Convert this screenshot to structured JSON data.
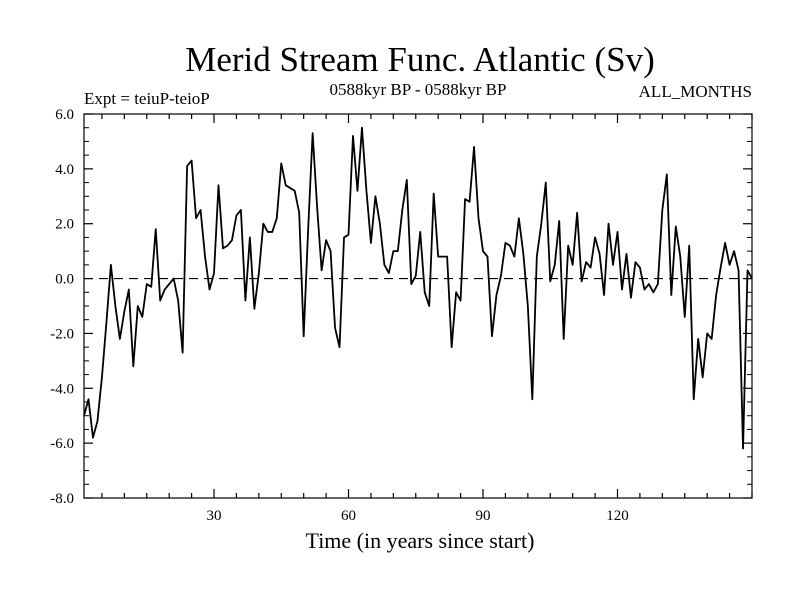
{
  "chart_data": {
    "type": "line",
    "title": "Merid Stream Func. Atlantic (Sv)",
    "subtitle_left": "Expt = teiuP-teioP",
    "subtitle_center": "0588kyr BP - 0588kyr BP",
    "subtitle_right": "ALL_MONTHS",
    "xlabel": "Time (in years since start)",
    "ylabel": "",
    "xlim": [
      1,
      150
    ],
    "ylim": [
      -8.0,
      6.0
    ],
    "xticks": [
      30,
      60,
      90,
      120
    ],
    "yticks": [
      6.0,
      4.0,
      2.0,
      0.0,
      -2.0,
      -4.0,
      -6.0,
      -8.0
    ],
    "ytick_labels": [
      "6.0",
      "4.0",
      "2.0",
      "0.0",
      "-2.0",
      "-4.0",
      "-6.0",
      "-8.0"
    ],
    "reference_line": 0.0,
    "series": [
      {
        "name": "Merid Stream Func. Atlantic",
        "x": [
          1,
          2,
          3,
          4,
          5,
          6,
          7,
          8,
          9,
          10,
          11,
          12,
          13,
          14,
          15,
          16,
          17,
          18,
          19,
          20,
          21,
          22,
          23,
          24,
          25,
          26,
          27,
          28,
          29,
          30,
          31,
          32,
          33,
          34,
          35,
          36,
          37,
          38,
          39,
          40,
          41,
          42,
          43,
          44,
          45,
          46,
          47,
          48,
          49,
          50,
          51,
          52,
          53,
          54,
          55,
          56,
          57,
          58,
          59,
          60,
          61,
          62,
          63,
          64,
          65,
          66,
          67,
          68,
          69,
          70,
          71,
          72,
          73,
          74,
          75,
          76,
          77,
          78,
          79,
          80,
          81,
          82,
          83,
          84,
          85,
          86,
          87,
          88,
          89,
          90,
          91,
          92,
          93,
          94,
          95,
          96,
          97,
          98,
          99,
          100,
          101,
          102,
          103,
          104,
          105,
          106,
          107,
          108,
          109,
          110,
          111,
          112,
          113,
          114,
          115,
          116,
          117,
          118,
          119,
          120,
          121,
          122,
          123,
          124,
          125,
          126,
          127,
          128,
          129,
          130,
          131,
          132,
          133,
          134,
          135,
          136,
          137,
          138,
          139,
          140,
          141,
          142,
          143,
          144,
          145,
          146,
          147,
          148,
          149,
          150
        ],
        "values": [
          -5.0,
          -4.4,
          -5.8,
          -5.2,
          -3.6,
          -1.6,
          0.5,
          -1.0,
          -2.2,
          -1.2,
          -0.4,
          -3.2,
          -1.0,
          -1.4,
          -0.2,
          -0.3,
          1.8,
          -0.8,
          -0.4,
          -0.2,
          0.0,
          -0.8,
          -2.7,
          4.1,
          4.3,
          2.2,
          2.5,
          0.8,
          -0.4,
          0.2,
          3.4,
          1.1,
          1.2,
          1.4,
          2.3,
          2.5,
          -0.8,
          1.5,
          -1.1,
          0.2,
          2.0,
          1.7,
          1.7,
          2.2,
          4.2,
          3.4,
          3.3,
          3.2,
          2.4,
          -2.1,
          1.8,
          5.3,
          2.6,
          0.3,
          1.4,
          1.0,
          -1.8,
          -2.5,
          1.5,
          1.6,
          5.2,
          3.2,
          5.5,
          3.2,
          1.3,
          3.0,
          2.0,
          0.5,
          0.2,
          1.0,
          1.0,
          2.5,
          3.6,
          -0.2,
          0.1,
          1.7,
          -0.5,
          -1.0,
          3.1,
          0.8,
          0.8,
          0.8,
          -2.5,
          -0.5,
          -0.8,
          2.9,
          2.8,
          4.8,
          2.2,
          1.0,
          0.8,
          -2.1,
          -0.6,
          0.1,
          1.3,
          1.2,
          0.8,
          2.2,
          0.9,
          -1.0,
          -4.4,
          0.8,
          2.0,
          3.5,
          -0.1,
          0.5,
          2.1,
          -2.2,
          1.2,
          0.5,
          2.4,
          -0.1,
          0.6,
          0.4,
          1.5,
          0.9,
          -0.6,
          2.0,
          0.5,
          1.7,
          -0.4,
          0.9,
          -0.7,
          0.6,
          0.4,
          -0.4,
          -0.2,
          -0.5,
          -0.2,
          2.5,
          3.8,
          -0.6,
          1.9,
          0.8,
          -1.4,
          1.2,
          -4.4,
          -2.2,
          -3.6,
          -2.0,
          -2.2,
          -0.6,
          0.4,
          1.3,
          0.5,
          1.0,
          0.3,
          -6.2,
          0.3,
          0.0
        ]
      }
    ]
  }
}
